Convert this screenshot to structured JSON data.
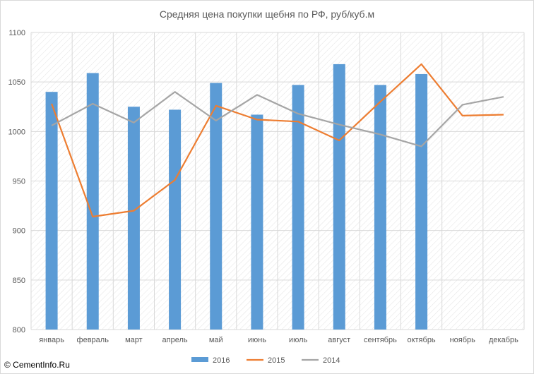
{
  "chart_data": {
    "type": "bar",
    "title": "Средняя цена покупки щебня по РФ, руб/куб.м",
    "xlabel": "",
    "ylabel": "",
    "categories": [
      "январь",
      "февраль",
      "март",
      "апрель",
      "май",
      "июнь",
      "июль",
      "август",
      "сентябрь",
      "октябрь",
      "ноябрь",
      "декабрь"
    ],
    "ylim": [
      800,
      1100
    ],
    "yticks": [
      "800",
      "850",
      "900",
      "950",
      "1000",
      "1050",
      "1100"
    ],
    "grid": true,
    "legend_position": "bottom",
    "series": [
      {
        "name": "2016",
        "kind": "bar",
        "color": "#5b9bd5",
        "values": [
          1040,
          1059,
          1025,
          1022,
          1049,
          1017,
          1047,
          1068,
          1047,
          1058,
          null,
          null
        ]
      },
      {
        "name": "2015",
        "kind": "line",
        "color": "#ed7d31",
        "values": [
          1028,
          914,
          920,
          951,
          1026,
          1012,
          1010,
          991,
          1030,
          1068,
          1016,
          1017
        ]
      },
      {
        "name": "2014",
        "kind": "line",
        "color": "#a5a5a5",
        "values": [
          1006,
          1028,
          1009,
          1040,
          1011,
          1037,
          1018,
          1007,
          997,
          985,
          1027,
          1035
        ]
      }
    ]
  },
  "watermark": "© CementInfo.Ru"
}
